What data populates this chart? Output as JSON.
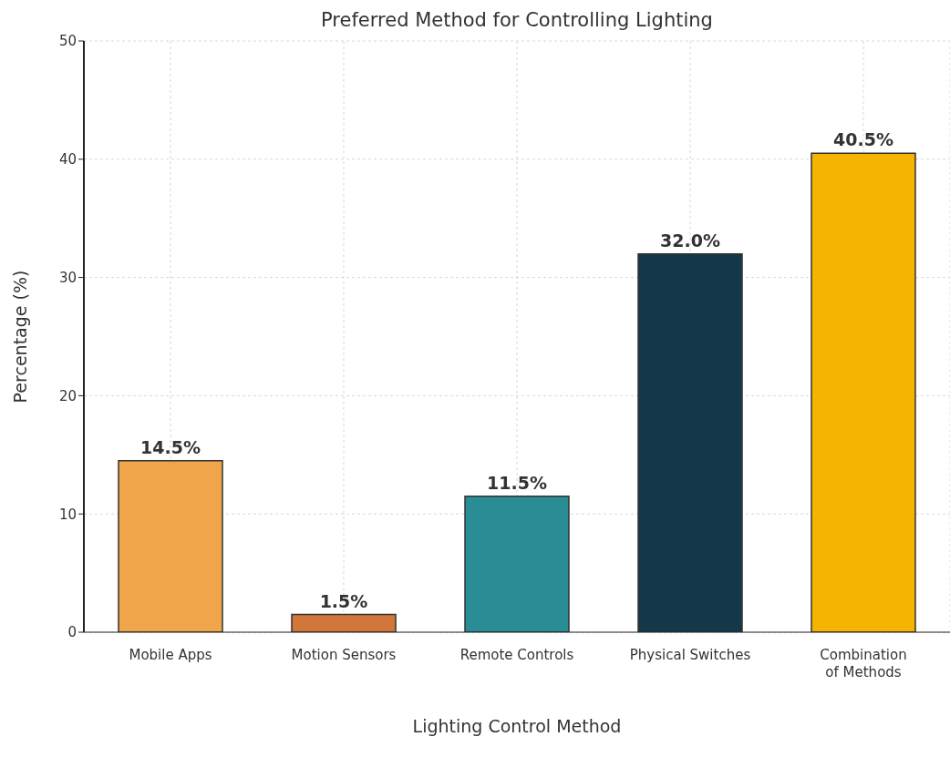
{
  "chart_data": {
    "type": "bar",
    "title": "Preferred Method for Controlling Lighting",
    "xlabel": "Lighting Control Method",
    "ylabel": "Percentage (%)",
    "categories": [
      "Mobile Apps",
      "Motion Sensors",
      "Remote Controls",
      "Physical Switches",
      "Combination\nof Methods"
    ],
    "values": [
      14.5,
      1.5,
      11.5,
      32.0,
      40.5
    ],
    "colors": [
      "#f0a54a",
      "#d2773a",
      "#2a8d96",
      "#15374a",
      "#f4b400"
    ],
    "value_labels": [
      "14.5%",
      "1.5%",
      "11.5%",
      "32.0%",
      "40.5%"
    ],
    "ylim": [
      0,
      50
    ],
    "yticks": [
      0,
      10,
      20,
      30,
      40,
      50
    ],
    "grid": true
  }
}
